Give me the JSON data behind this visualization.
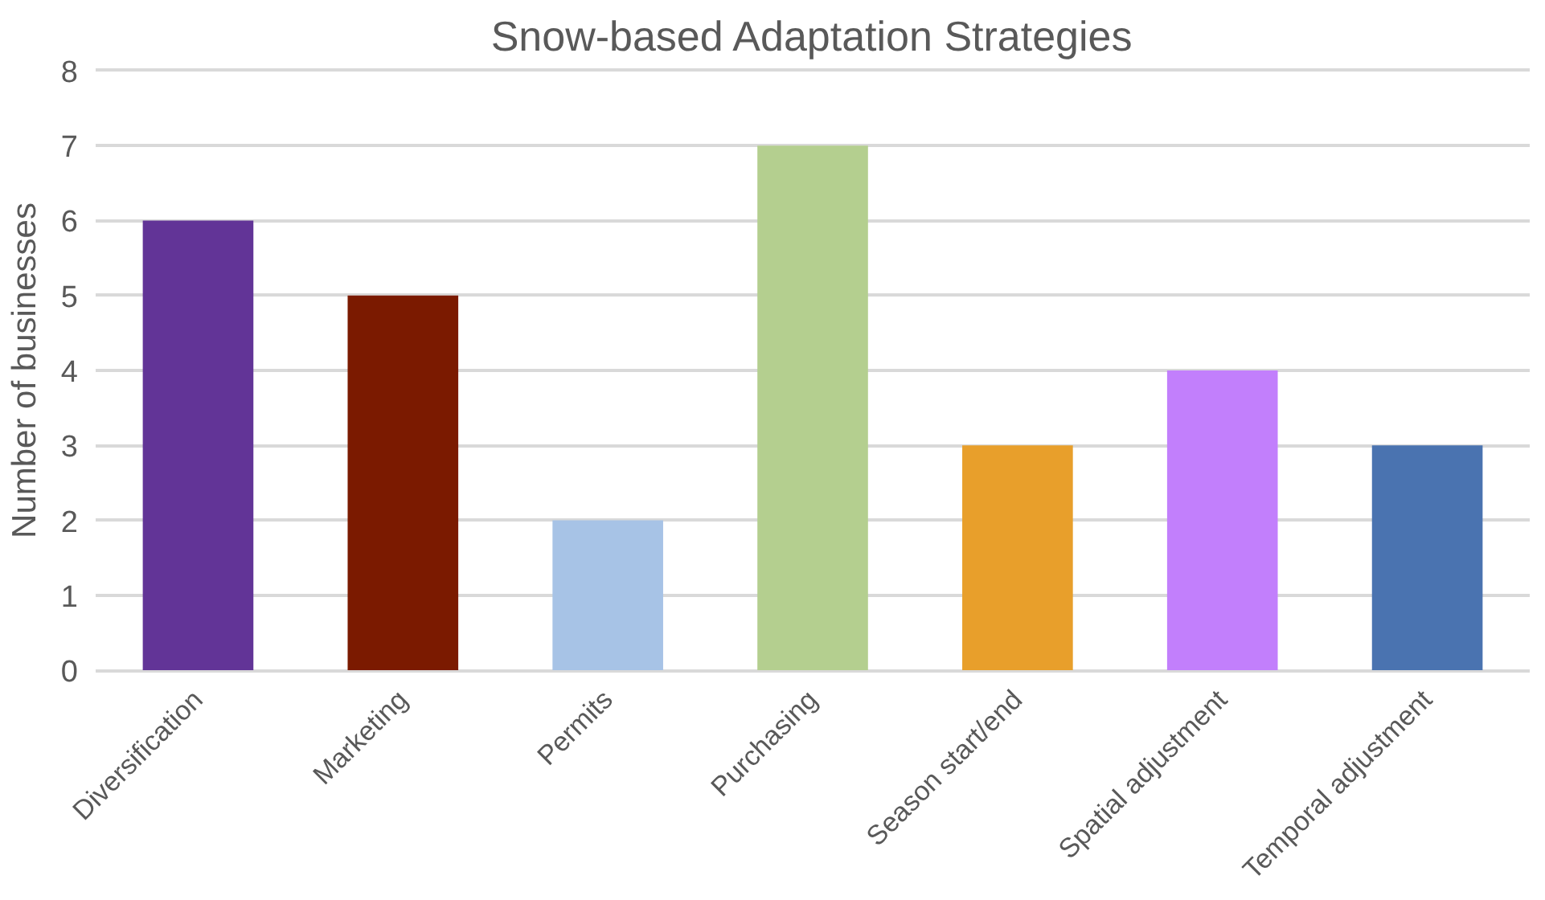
{
  "chart_data": {
    "type": "bar",
    "title": "Snow-based Adaptation Strategies",
    "ylabel": "Number of businesses",
    "categories": [
      "Diversification",
      "Marketing",
      "Permits",
      "Purchasing",
      "Season start/end",
      "Spatial adjustment",
      "Temporal adjustment"
    ],
    "values": [
      6,
      5,
      2,
      7,
      3,
      4,
      3
    ],
    "colors": [
      "#623497",
      "#7b1a00",
      "#a7c3e6",
      "#b4cf8f",
      "#e89f2b",
      "#c27ffc",
      "#4a73b0"
    ],
    "ylim": [
      0,
      8
    ],
    "yticks": [
      0,
      1,
      2,
      3,
      4,
      5,
      6,
      7,
      8
    ],
    "grid": "y"
  }
}
